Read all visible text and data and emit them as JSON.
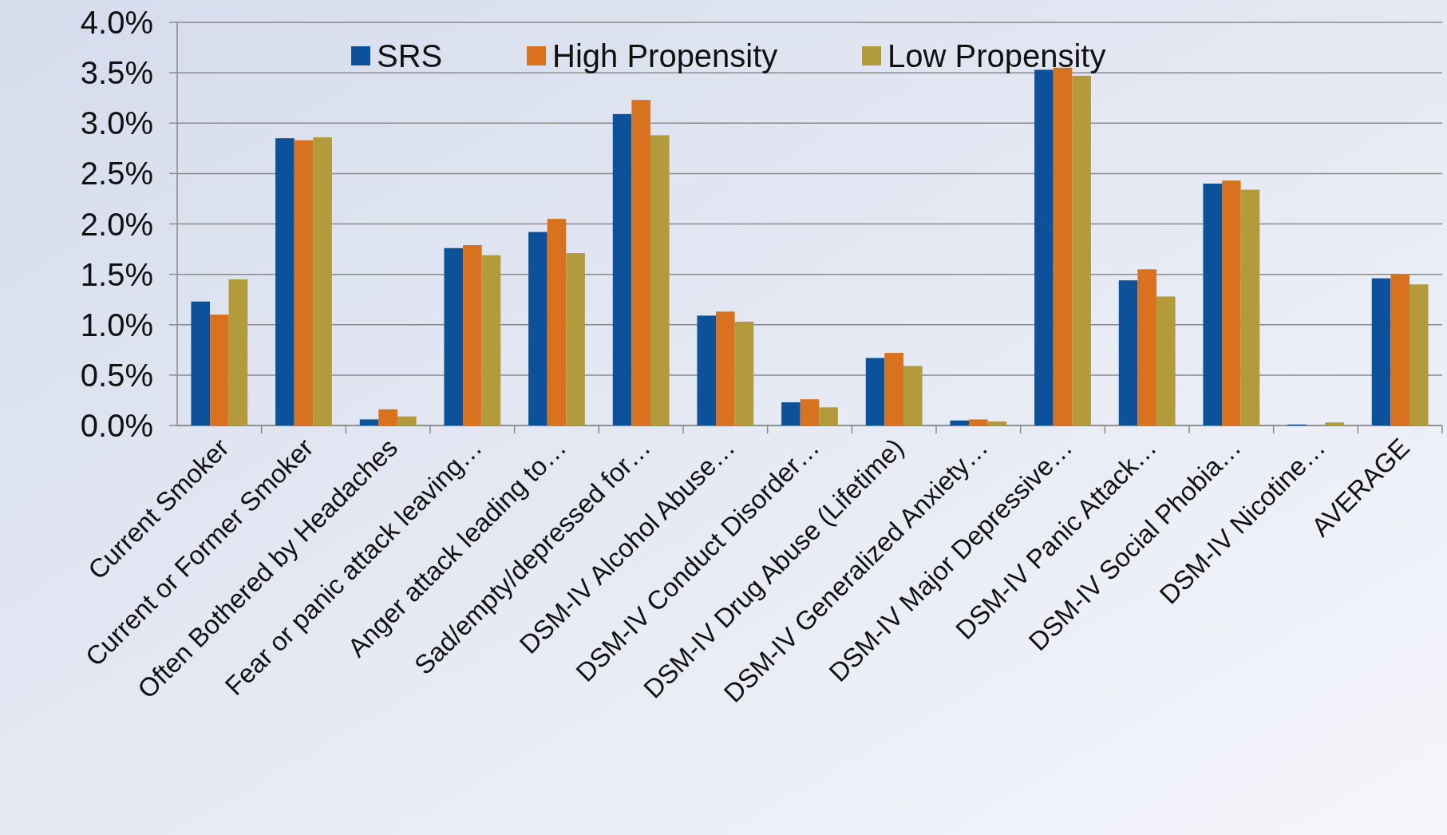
{
  "chart_data": {
    "type": "bar",
    "categories": [
      "Current Smoker",
      "Current or Former Smoker",
      "Often Bothered by Headaches",
      "Fear or panic attack leaving…",
      "Anger attack leading to…",
      "Sad/empty/depressed for…",
      "DSM-IV Alcohol Abuse…",
      "DSM-IV Conduct Disorder…",
      "DSM-IV Drug Abuse (Lifetime)",
      "DSM-IV Generalized Anxiety…",
      "DSM-IV Major Depressive…",
      "DSM-IV Panic Attack…",
      "DSM-IV Social Phobia…",
      "DSM-IV Nicotine…",
      "AVERAGE"
    ],
    "series": [
      {
        "name": "SRS",
        "color": "#0b529b",
        "values": [
          1.23,
          2.85,
          0.06,
          1.76,
          1.92,
          3.09,
          1.09,
          0.23,
          0.67,
          0.05,
          3.53,
          1.44,
          2.4,
          0.01,
          1.46
        ]
      },
      {
        "name": "High Propensity",
        "color": "#d9721f",
        "values": [
          1.1,
          2.83,
          0.16,
          1.79,
          2.05,
          3.23,
          1.13,
          0.26,
          0.72,
          0.06,
          3.55,
          1.55,
          2.43,
          0,
          1.5
        ]
      },
      {
        "name": "Low Propensity",
        "color": "#b39b3c",
        "values": [
          1.45,
          2.86,
          0.09,
          1.69,
          1.71,
          2.88,
          1.03,
          0.18,
          0.59,
          0.04,
          3.47,
          1.28,
          2.34,
          0.03,
          1.4
        ]
      }
    ],
    "ylim": [
      0,
      4
    ],
    "yticks": [
      {
        "value": 0,
        "label": "0.0%"
      },
      {
        "value": 0.5,
        "label": "0.5%"
      },
      {
        "value": 1,
        "label": "1.0%"
      },
      {
        "value": 1.5,
        "label": "1.5%"
      },
      {
        "value": 2,
        "label": "2.0%"
      },
      {
        "value": 2.5,
        "label": "2.5%"
      },
      {
        "value": 3,
        "label": "3.0%"
      },
      {
        "value": 3.5,
        "label": "3.5%"
      },
      {
        "value": 4,
        "label": "4.0%"
      }
    ],
    "grid": "y",
    "legend": "top"
  }
}
